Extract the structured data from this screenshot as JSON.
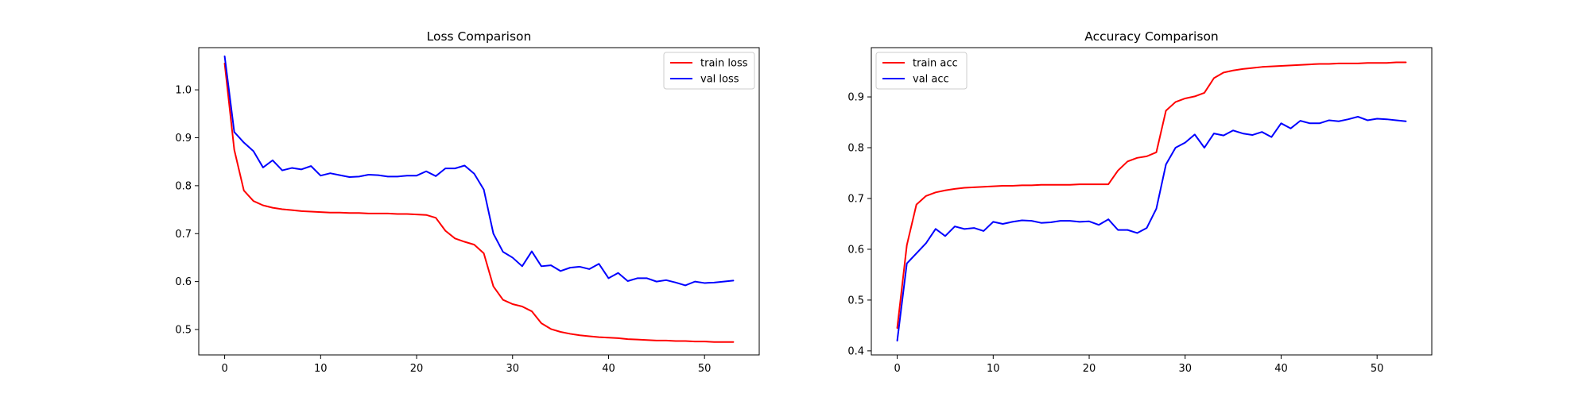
{
  "chart_data": [
    {
      "type": "line",
      "title": "Loss Comparison",
      "xlabel": "",
      "ylabel": "",
      "xlim": [
        -2.7,
        55.7
      ],
      "ylim": [
        0.447,
        1.088
      ],
      "xticks": [
        0,
        10,
        20,
        30,
        40,
        50
      ],
      "yticks": [
        0.5,
        0.6,
        0.7,
        0.8,
        0.9,
        1.0
      ],
      "grid": false,
      "legend_position": "upper right",
      "x": [
        0,
        1,
        2,
        3,
        4,
        5,
        6,
        7,
        8,
        9,
        10,
        11,
        12,
        13,
        14,
        15,
        16,
        17,
        18,
        19,
        20,
        21,
        22,
        23,
        24,
        25,
        26,
        27,
        28,
        29,
        30,
        31,
        32,
        33,
        34,
        35,
        36,
        37,
        38,
        39,
        40,
        41,
        42,
        43,
        44,
        45,
        46,
        47,
        48,
        49,
        50,
        51,
        52,
        53
      ],
      "series": [
        {
          "name": "train loss",
          "color": "#ff0000",
          "values": [
            1.055,
            0.875,
            0.79,
            0.768,
            0.759,
            0.754,
            0.751,
            0.749,
            0.747,
            0.746,
            0.745,
            0.744,
            0.744,
            0.743,
            0.743,
            0.742,
            0.742,
            0.742,
            0.741,
            0.741,
            0.74,
            0.739,
            0.733,
            0.706,
            0.69,
            0.683,
            0.677,
            0.659,
            0.59,
            0.562,
            0.553,
            0.548,
            0.538,
            0.513,
            0.501,
            0.495,
            0.491,
            0.488,
            0.486,
            0.484,
            0.483,
            0.482,
            0.48,
            0.479,
            0.478,
            0.477,
            0.477,
            0.476,
            0.476,
            0.475,
            0.475,
            0.474,
            0.474,
            0.474
          ]
        },
        {
          "name": "val loss",
          "color": "#0000ff",
          "values": [
            1.07,
            0.912,
            0.89,
            0.872,
            0.838,
            0.853,
            0.832,
            0.837,
            0.834,
            0.841,
            0.821,
            0.826,
            0.822,
            0.818,
            0.819,
            0.823,
            0.822,
            0.819,
            0.819,
            0.821,
            0.821,
            0.83,
            0.82,
            0.836,
            0.836,
            0.842,
            0.825,
            0.792,
            0.7,
            0.662,
            0.65,
            0.632,
            0.663,
            0.632,
            0.634,
            0.622,
            0.629,
            0.631,
            0.626,
            0.637,
            0.607,
            0.618,
            0.601,
            0.607,
            0.607,
            0.6,
            0.603,
            0.598,
            0.592,
            0.6,
            0.597,
            0.598,
            0.6,
            0.602
          ]
        }
      ]
    },
    {
      "type": "line",
      "title": "Accuracy Comparison",
      "xlabel": "",
      "ylabel": "",
      "xlim": [
        -2.7,
        55.7
      ],
      "ylim": [
        0.392,
        0.997
      ],
      "xticks": [
        0,
        10,
        20,
        30,
        40,
        50
      ],
      "yticks": [
        0.4,
        0.5,
        0.6,
        0.7,
        0.8,
        0.9
      ],
      "grid": false,
      "legend_position": "upper left",
      "x": [
        0,
        1,
        2,
        3,
        4,
        5,
        6,
        7,
        8,
        9,
        10,
        11,
        12,
        13,
        14,
        15,
        16,
        17,
        18,
        19,
        20,
        21,
        22,
        23,
        24,
        25,
        26,
        27,
        28,
        29,
        30,
        31,
        32,
        33,
        34,
        35,
        36,
        37,
        38,
        39,
        40,
        41,
        42,
        43,
        44,
        45,
        46,
        47,
        48,
        49,
        50,
        51,
        52,
        53
      ],
      "series": [
        {
          "name": "train acc",
          "color": "#ff0000",
          "values": [
            0.445,
            0.608,
            0.688,
            0.705,
            0.712,
            0.716,
            0.719,
            0.721,
            0.722,
            0.723,
            0.724,
            0.725,
            0.725,
            0.726,
            0.726,
            0.727,
            0.727,
            0.727,
            0.727,
            0.728,
            0.728,
            0.728,
            0.728,
            0.755,
            0.773,
            0.78,
            0.783,
            0.791,
            0.873,
            0.89,
            0.897,
            0.901,
            0.908,
            0.937,
            0.948,
            0.952,
            0.955,
            0.957,
            0.959,
            0.96,
            0.961,
            0.962,
            0.963,
            0.964,
            0.965,
            0.965,
            0.966,
            0.966,
            0.966,
            0.967,
            0.967,
            0.967,
            0.968,
            0.968
          ]
        },
        {
          "name": "val acc",
          "color": "#0000ff",
          "values": [
            0.42,
            0.572,
            0.592,
            0.612,
            0.64,
            0.626,
            0.645,
            0.64,
            0.642,
            0.636,
            0.654,
            0.65,
            0.654,
            0.657,
            0.656,
            0.652,
            0.653,
            0.656,
            0.656,
            0.654,
            0.655,
            0.648,
            0.659,
            0.638,
            0.638,
            0.632,
            0.642,
            0.68,
            0.767,
            0.8,
            0.81,
            0.826,
            0.8,
            0.828,
            0.824,
            0.834,
            0.828,
            0.825,
            0.831,
            0.821,
            0.848,
            0.838,
            0.853,
            0.848,
            0.848,
            0.854,
            0.852,
            0.856,
            0.861,
            0.854,
            0.857,
            0.856,
            0.854,
            0.852
          ]
        }
      ]
    }
  ]
}
